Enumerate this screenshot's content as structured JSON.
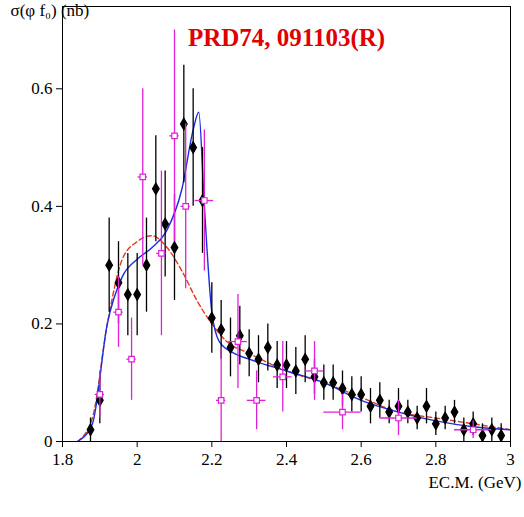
{
  "chart_data": {
    "type": "scatter",
    "title": "PRD74, 091103(R)",
    "x_label": "EC.M. (GeV)",
    "y_label": "σ(φ f₀) (nb)",
    "xlim": [
      1.8,
      3.0
    ],
    "ylim": [
      0,
      0.74
    ],
    "xticks": [
      1.8,
      2,
      2.2,
      2.4,
      2.6,
      2.8,
      3
    ],
    "yticks": [
      0,
      0.2,
      0.4,
      0.6
    ],
    "grid": false,
    "series": [
      {
        "type": "line",
        "color": "#e03a20",
        "line_style": "dashed",
        "x": [
          1.84,
          1.88,
          1.92,
          1.96,
          2.0,
          2.04,
          2.08,
          2.12,
          2.16,
          2.2,
          2.24,
          2.3,
          2.4,
          2.5,
          2.6,
          2.7,
          2.8,
          2.9,
          3.0
        ],
        "values": [
          0,
          0.04,
          0.2,
          0.31,
          0.34,
          0.35,
          0.33,
          0.29,
          0.24,
          0.2,
          0.17,
          0.15,
          0.12,
          0.1,
          0.075,
          0.05,
          0.04,
          0.03,
          0.02
        ]
      },
      {
        "type": "line",
        "color": "#1a2ee0",
        "line_style": "solid",
        "x": [
          1.84,
          1.88,
          1.92,
          1.96,
          2.0,
          2.04,
          2.08,
          2.12,
          2.15,
          2.165,
          2.18,
          2.2,
          2.22,
          2.26,
          2.3,
          2.4,
          2.5,
          2.6,
          2.7,
          2.8,
          2.9,
          3.0
        ],
        "values": [
          0,
          0.03,
          0.2,
          0.28,
          0.31,
          0.33,
          0.36,
          0.43,
          0.53,
          0.56,
          0.4,
          0.22,
          0.17,
          0.15,
          0.14,
          0.12,
          0.1,
          0.07,
          0.05,
          0.035,
          0.025,
          0.02
        ]
      },
      {
        "type": "scatter",
        "color": "#000000",
        "marker": "diamond",
        "x": [
          1.875,
          1.9,
          1.925,
          1.95,
          1.975,
          2.0,
          2.025,
          2.05,
          2.075,
          2.1,
          2.125,
          2.15,
          2.175,
          2.2,
          2.225,
          2.25,
          2.275,
          2.3,
          2.325,
          2.35,
          2.375,
          2.4,
          2.425,
          2.45,
          2.475,
          2.5,
          2.525,
          2.55,
          2.575,
          2.6,
          2.625,
          2.65,
          2.675,
          2.7,
          2.725,
          2.75,
          2.775,
          2.8,
          2.825,
          2.85,
          2.875,
          2.9,
          2.925,
          2.95,
          2.975
        ],
        "values": [
          0.02,
          0.07,
          0.3,
          0.27,
          0.25,
          0.25,
          0.3,
          0.43,
          0.37,
          0.33,
          0.54,
          0.5,
          0.41,
          0.21,
          0.19,
          0.16,
          0.18,
          0.15,
          0.14,
          0.16,
          0.13,
          0.13,
          0.12,
          0.14,
          0.11,
          0.1,
          0.1,
          0.09,
          0.08,
          0.08,
          0.06,
          0.07,
          0.05,
          0.06,
          0.05,
          0.04,
          0.06,
          0.03,
          0.04,
          0.05,
          0.02,
          0.03,
          0.01,
          0.02,
          0.01
        ],
        "errors": [
          0.02,
          0.04,
          0.08,
          0.07,
          0.07,
          0.07,
          0.08,
          0.09,
          0.09,
          0.09,
          0.1,
          0.1,
          0.09,
          0.06,
          0.05,
          0.05,
          0.05,
          0.04,
          0.04,
          0.04,
          0.04,
          0.04,
          0.04,
          0.04,
          0.03,
          0.03,
          0.03,
          0.03,
          0.03,
          0.03,
          0.03,
          0.03,
          0.02,
          0.03,
          0.02,
          0.02,
          0.03,
          0.02,
          0.02,
          0.02,
          0.02,
          0.02,
          0.02,
          0.02,
          0.02
        ]
      },
      {
        "type": "scatter",
        "color": "#e020d8",
        "marker": "open_square",
        "x": [
          1.9,
          1.95,
          1.985,
          2.015,
          2.065,
          2.1,
          2.13,
          2.18,
          2.225,
          2.27,
          2.32,
          2.39,
          2.475,
          2.55,
          2.7,
          2.9
        ],
        "values": [
          0.08,
          0.22,
          0.14,
          0.45,
          0.32,
          0.52,
          0.4,
          0.41,
          0.07,
          0.17,
          0.07,
          0.11,
          0.12,
          0.05,
          0.04,
          0.02
        ],
        "errors": [
          0.04,
          0.06,
          0.07,
          0.15,
          0.14,
          0.18,
          0.14,
          0.12,
          0.09,
          0.08,
          0.05,
          0.06,
          0.05,
          0.03,
          0.03,
          0.015
        ],
        "x_errors": [
          0.0125,
          0.0125,
          0.0125,
          0.0125,
          0.0125,
          0.0125,
          0.0125,
          0.025,
          0.0125,
          0.025,
          0.025,
          0.025,
          0.025,
          0.05,
          0.05,
          0.05
        ]
      }
    ]
  }
}
